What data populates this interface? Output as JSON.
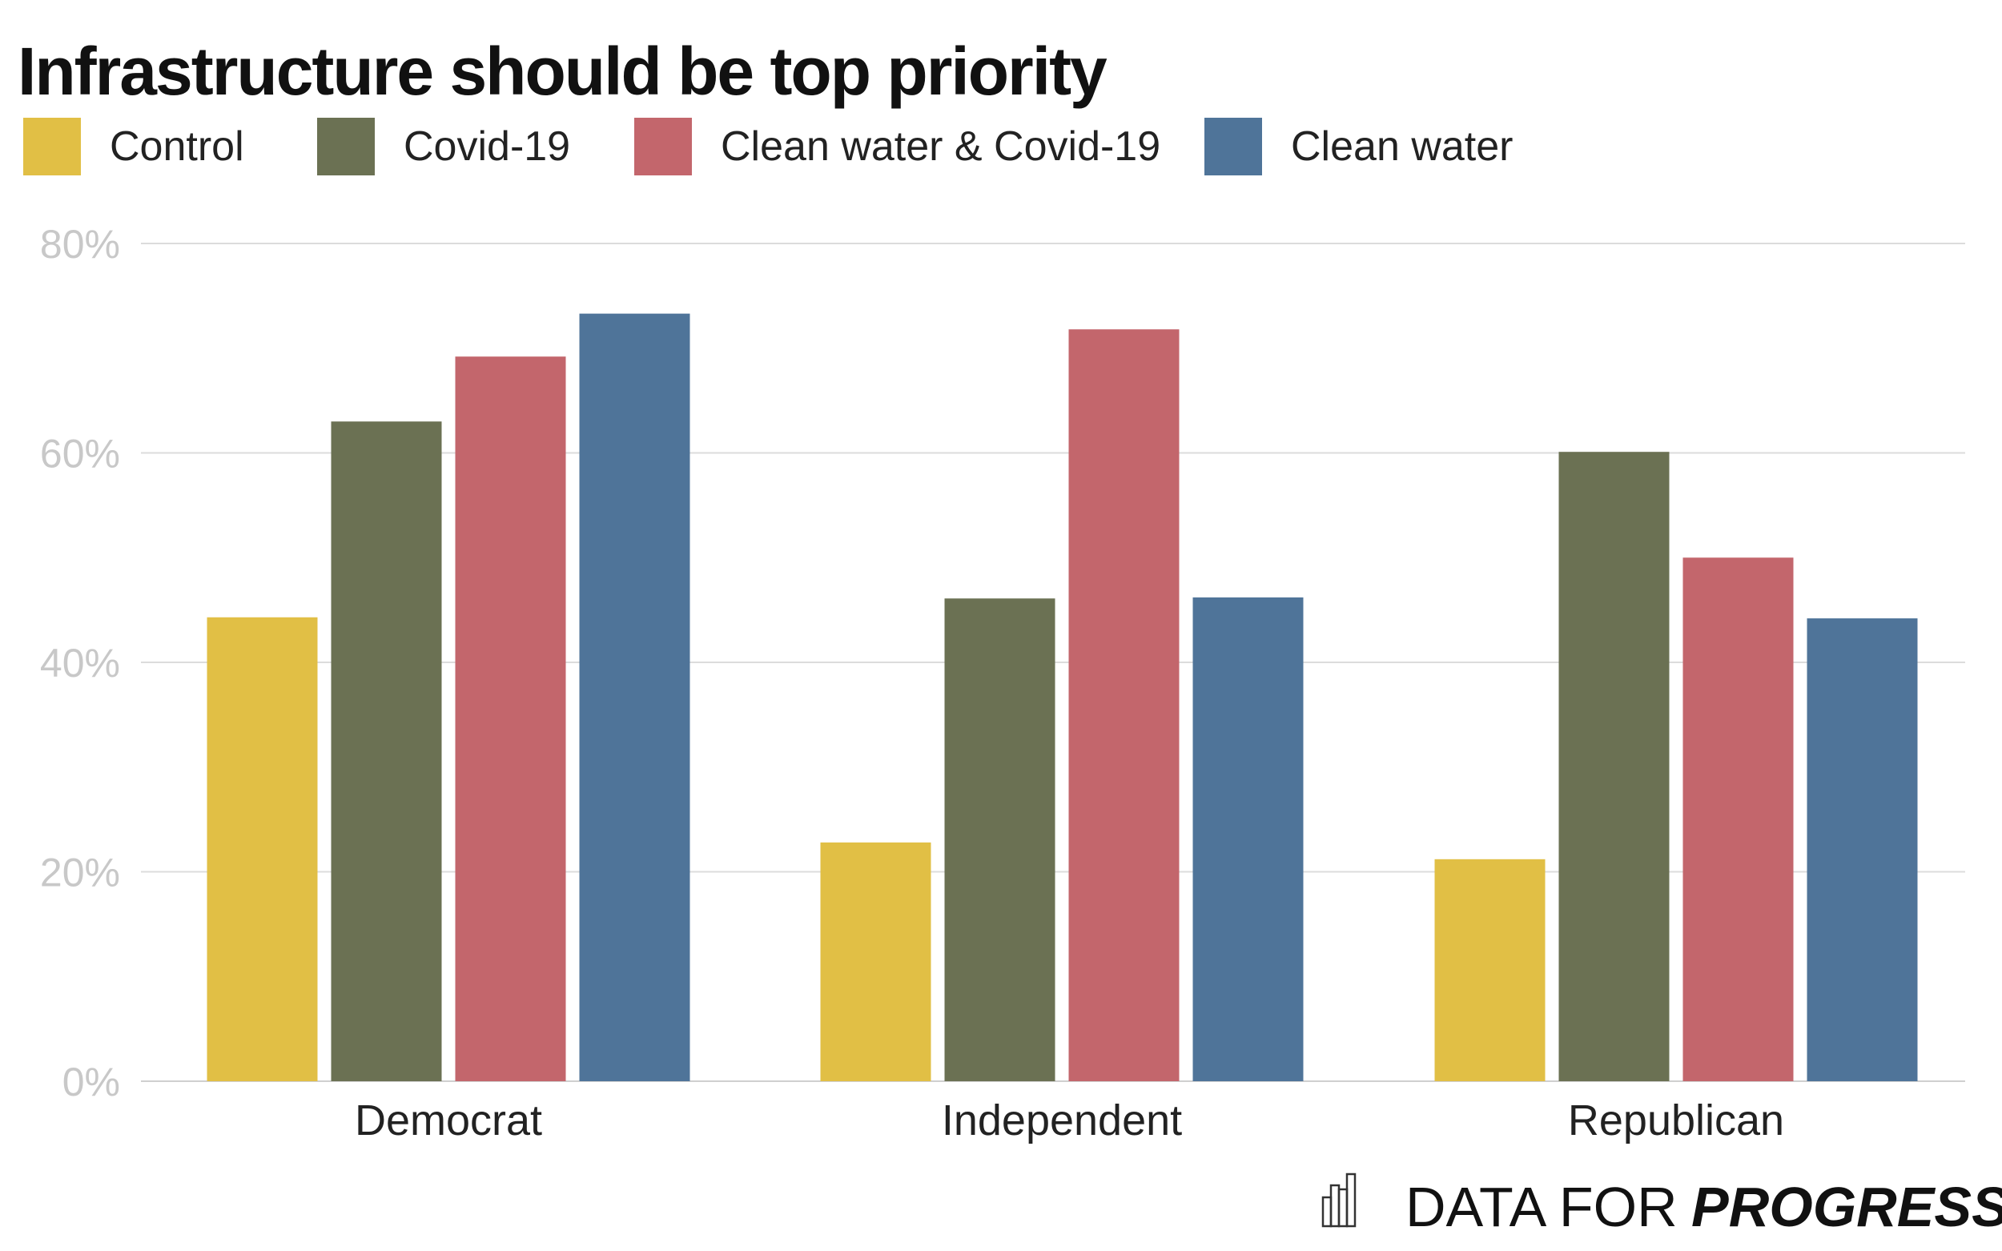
{
  "chart_data": {
    "type": "bar",
    "title": "Infrastructure should be top priority",
    "categories": [
      "Democrat",
      "Independent",
      "Republican"
    ],
    "series": [
      {
        "name": "Control",
        "color": "#E1BF45",
        "values": [
          44.3,
          22.8,
          21.2
        ]
      },
      {
        "name": "Covid-19",
        "color": "#6B7153",
        "values": [
          63.0,
          46.1,
          60.1
        ]
      },
      {
        "name": "Clean water & Covid-19",
        "color": "#C3666C",
        "values": [
          69.2,
          71.8,
          50.0
        ]
      },
      {
        "name": "Clean water",
        "color": "#4F7499",
        "values": [
          73.3,
          46.2,
          44.2
        ]
      }
    ],
    "yticks": [
      "0%",
      "20%",
      "40%",
      "60%",
      "80%"
    ],
    "ytick_values": [
      0,
      20,
      40,
      60,
      80
    ],
    "ylim": [
      0,
      80
    ],
    "grid": true,
    "legend": "top-left",
    "xlabel": "",
    "ylabel": ""
  },
  "branding": {
    "logo_text_light": "DATA FOR",
    "logo_text_bold": "PROGRESS",
    "logo_icon": "bar-chart-icon"
  }
}
